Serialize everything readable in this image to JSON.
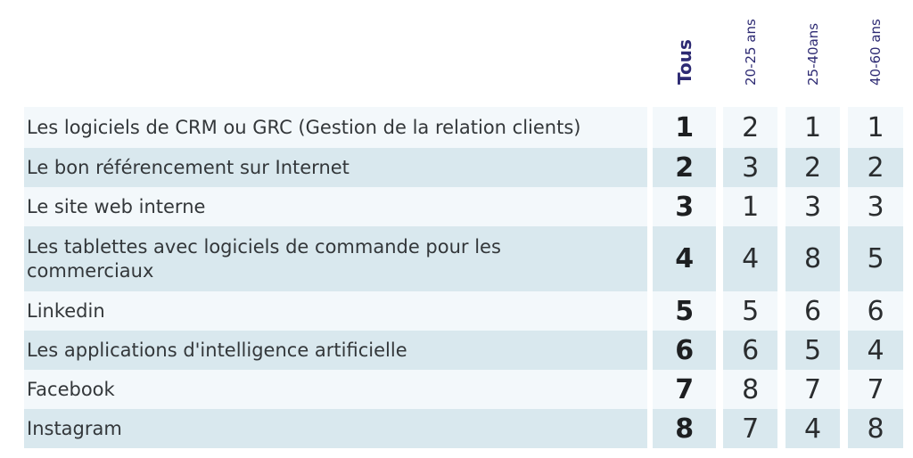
{
  "chart_data": {
    "type": "table",
    "columns": [
      "Tous",
      "20-25 ans",
      "25-40ans",
      "40-60 ans"
    ],
    "rows": [
      {
        "label": "Les logiciels de CRM ou GRC (Gestion de la relation clients)",
        "values": [
          1,
          2,
          1,
          1
        ]
      },
      {
        "label": "Le bon référencement sur Internet",
        "values": [
          2,
          3,
          2,
          2
        ]
      },
      {
        "label": "Le site web interne",
        "values": [
          3,
          1,
          3,
          3
        ]
      },
      {
        "label": "Les tablettes avec logiciels de commande pour les\ncommerciaux",
        "values": [
          4,
          4,
          8,
          5
        ]
      },
      {
        "label": "Linkedin",
        "values": [
          5,
          5,
          6,
          6
        ]
      },
      {
        "label": "Les applications d'intelligence artificielle",
        "values": [
          6,
          6,
          5,
          4
        ]
      },
      {
        "label": "Facebook",
        "values": [
          7,
          8,
          7,
          7
        ]
      },
      {
        "label": "Instagram",
        "values": [
          8,
          7,
          4,
          8
        ]
      }
    ],
    "value_semantics": "rank",
    "layout": {
      "first_column_bold": true,
      "alternating_row_stripes": true,
      "header_rotation_degrees": -90
    }
  },
  "colors": {
    "header_text": "#2d2a73",
    "row_light": "#f3f8fb",
    "row_dark": "#d9e8ee",
    "label_text": "#33373a",
    "value_text": "#2a2d2f",
    "background": "#ffffff"
  }
}
